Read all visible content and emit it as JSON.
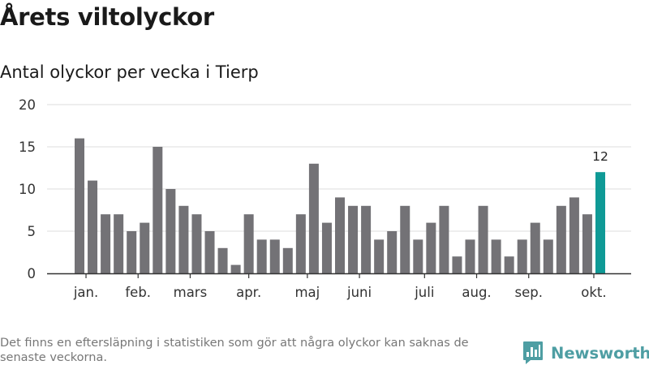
{
  "header": {
    "title": "Årets viltolyckor",
    "subtitle": "Antal olyckor per vecka i Tierp"
  },
  "footer": {
    "note": "Det finns en eftersläpning i statistiken som gör att några olyckor kan saknas de senaste veckorna.",
    "brand": "Newsworthy"
  },
  "colors": {
    "bar": "#737276",
    "highlight": "#0f9a96",
    "grid": "#e3e3e3",
    "axis": "#333333",
    "brand": "#4e9ea3"
  },
  "chart_data": {
    "type": "bar",
    "title": "Årets viltolyckor",
    "subtitle": "Antal olyckor per vecka i Tierp",
    "xlabel": "",
    "ylabel": "",
    "ylim": [
      0,
      20
    ],
    "yticks": [
      0,
      5,
      10,
      15,
      20
    ],
    "grid": true,
    "values": [
      16,
      11,
      7,
      7,
      5,
      6,
      15,
      10,
      8,
      7,
      5,
      3,
      1,
      7,
      4,
      4,
      3,
      7,
      13,
      6,
      9,
      8,
      8,
      4,
      5,
      8,
      4,
      6,
      8,
      2,
      4,
      8,
      4,
      2,
      4,
      6,
      4,
      8,
      9,
      7,
      12
    ],
    "month_labels": [
      {
        "label": "jan.",
        "bar_index": 0.5
      },
      {
        "label": "feb.",
        "bar_index": 4.5
      },
      {
        "label": "mars",
        "bar_index": 8.5
      },
      {
        "label": "apr.",
        "bar_index": 13
      },
      {
        "label": "maj",
        "bar_index": 17.5
      },
      {
        "label": "juni",
        "bar_index": 21.5
      },
      {
        "label": "juli",
        "bar_index": 26.5
      },
      {
        "label": "aug.",
        "bar_index": 30.5
      },
      {
        "label": "sep.",
        "bar_index": 34.5
      },
      {
        "label": "okt.",
        "bar_index": 39.5
      }
    ],
    "highlight_index": 40,
    "highlight_label": "12"
  }
}
